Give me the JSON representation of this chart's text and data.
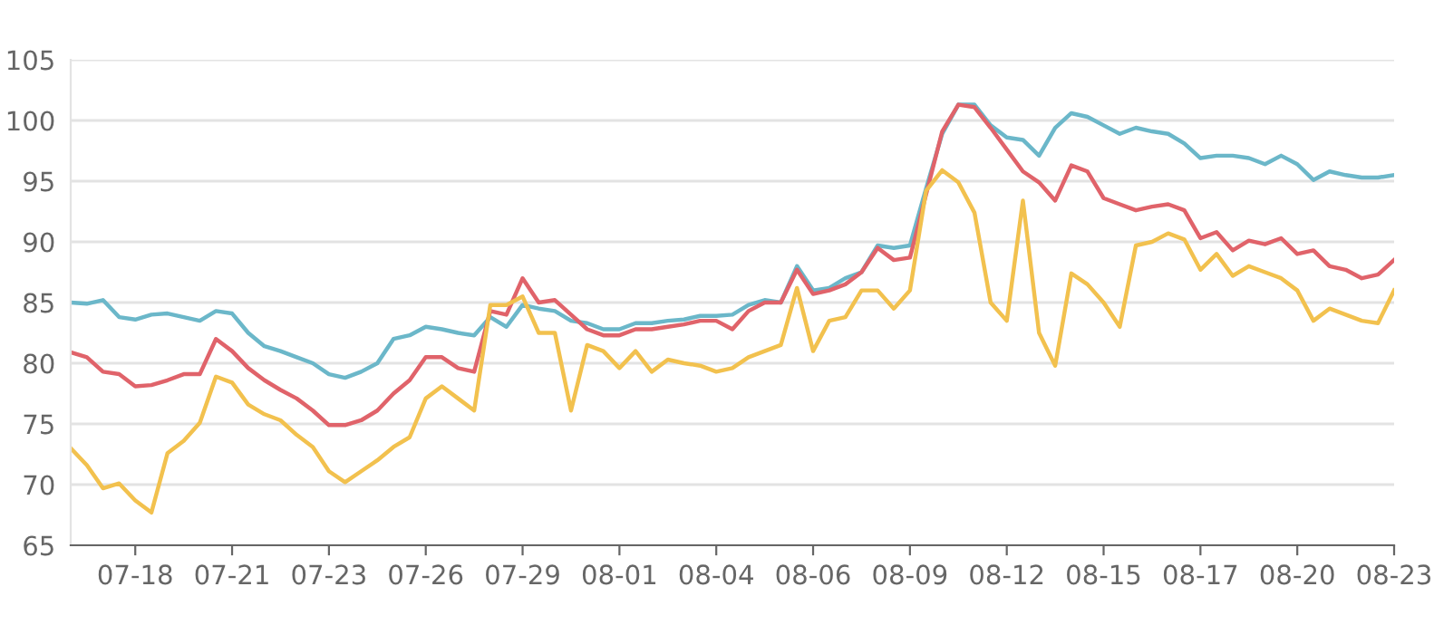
{
  "chart_data": {
    "type": "line",
    "categories": [
      null,
      null,
      null,
      null,
      "07-18",
      null,
      null,
      null,
      null,
      null,
      "07-21",
      null,
      null,
      null,
      null,
      null,
      "07-23",
      null,
      null,
      null,
      null,
      null,
      "07-26",
      null,
      null,
      null,
      null,
      null,
      "07-29",
      null,
      null,
      null,
      null,
      null,
      "08-01",
      null,
      null,
      null,
      null,
      null,
      "08-04",
      null,
      null,
      null,
      null,
      null,
      "08-06",
      null,
      null,
      null,
      null,
      null,
      "08-09",
      null,
      null,
      null,
      null,
      null,
      "08-12",
      null,
      null,
      null,
      null,
      null,
      "08-15",
      null,
      null,
      null,
      null,
      null,
      "08-17",
      null,
      null,
      null,
      null,
      null,
      "08-20",
      null,
      null,
      null,
      null,
      null,
      "08-23"
    ],
    "series": [
      {
        "color": "#6bb7c9",
        "values": [
          85.0,
          84.9,
          85.2,
          83.8,
          83.6,
          84.0,
          84.1,
          83.8,
          83.5,
          84.3,
          84.1,
          82.5,
          81.4,
          81.0,
          80.5,
          80.0,
          79.1,
          78.8,
          79.3,
          80.0,
          82.0,
          82.3,
          83.0,
          82.8,
          82.5,
          82.3,
          83.8,
          83.0,
          84.8,
          84.5,
          84.3,
          83.5,
          83.3,
          82.8,
          82.8,
          83.3,
          83.3,
          83.5,
          83.6,
          83.9,
          83.9,
          84.0,
          84.8,
          85.2,
          85.0,
          88.0,
          86.0,
          86.2,
          87.0,
          87.5,
          89.7,
          89.5,
          89.7,
          94.4,
          98.9,
          101.3,
          101.3,
          99.6,
          98.6,
          98.4,
          97.1,
          99.4,
          100.6,
          100.3,
          99.6,
          98.9,
          99.4,
          99.1,
          98.9,
          98.1,
          96.9,
          97.1,
          97.1,
          96.9,
          96.4,
          97.1,
          96.4,
          95.1,
          95.8,
          95.5,
          95.3,
          95.3,
          95.5
        ]
      },
      {
        "color": "#e0636a",
        "values": [
          80.9,
          80.5,
          79.3,
          79.1,
          78.1,
          78.2,
          78.6,
          79.1,
          79.1,
          82.0,
          81.0,
          79.6,
          78.6,
          77.8,
          77.1,
          76.1,
          74.9,
          74.9,
          75.3,
          76.1,
          77.5,
          78.6,
          80.5,
          80.5,
          79.6,
          79.3,
          84.3,
          84.0,
          87.0,
          85.0,
          85.2,
          84.0,
          82.8,
          82.3,
          82.3,
          82.8,
          82.8,
          83.0,
          83.2,
          83.5,
          83.5,
          82.8,
          84.3,
          85.0,
          85.0,
          87.7,
          85.7,
          86.0,
          86.5,
          87.5,
          89.5,
          88.5,
          88.7,
          93.9,
          99.1,
          101.3,
          101.1,
          99.4,
          97.6,
          95.8,
          94.9,
          93.4,
          96.3,
          95.8,
          93.6,
          93.1,
          92.6,
          92.9,
          93.1,
          92.6,
          90.3,
          90.8,
          89.3,
          90.1,
          89.8,
          90.3,
          89.0,
          89.3,
          88.0,
          87.7,
          87.0,
          87.3,
          88.5
        ]
      },
      {
        "color": "#f2c14e",
        "values": [
          73.0,
          71.6,
          69.7,
          70.1,
          68.7,
          67.7,
          72.6,
          73.6,
          75.1,
          78.9,
          78.4,
          76.6,
          75.8,
          75.3,
          74.1,
          73.1,
          71.1,
          70.2,
          71.1,
          72.0,
          73.1,
          73.9,
          77.1,
          78.1,
          77.1,
          76.1,
          84.8,
          84.8,
          85.5,
          82.5,
          82.5,
          76.1,
          81.5,
          81.0,
          79.6,
          81.0,
          79.3,
          80.3,
          80.0,
          79.8,
          79.3,
          79.6,
          80.5,
          81.0,
          81.5,
          86.2,
          81.0,
          83.5,
          83.8,
          86.0,
          86.0,
          84.5,
          86.0,
          94.2,
          95.9,
          94.9,
          92.4,
          85.0,
          83.5,
          93.4,
          82.5,
          79.8,
          87.4,
          86.5,
          85.0,
          83.0,
          89.7,
          90.0,
          90.7,
          90.2,
          87.7,
          89.0,
          87.2,
          88.0,
          87.5,
          87.0,
          86.0,
          83.5,
          84.5,
          84.0,
          83.5,
          83.3,
          86.0
        ]
      }
    ],
    "ylim": [
      65,
      105
    ],
    "yticks": [
      65,
      70,
      75,
      80,
      85,
      90,
      95,
      100,
      105
    ],
    "grid": "y",
    "line_style": "solid",
    "marker": "none"
  }
}
